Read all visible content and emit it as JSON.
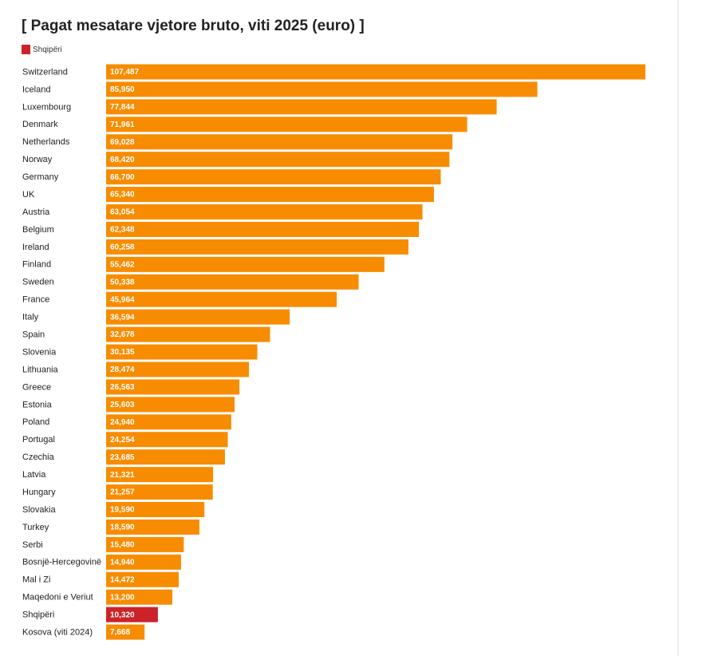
{
  "chart_data": {
    "type": "barh",
    "title": "[ Pagat mesatare vjetore bruto, viti 2025 (euro) ]",
    "color": "#f78c00",
    "highlight": {
      "name": "Shqipëri",
      "color": "#cc2229"
    },
    "categories": [
      "Switzerland",
      "Iceland",
      "Luxembourg",
      "Denmark",
      "Netherlands",
      "Norway",
      "Germany",
      "UK",
      "Austria",
      "Belgium",
      "Ireland",
      "Finland",
      "Sweden",
      "France",
      "Italy",
      "Spain",
      "Slovenia",
      "Lithuania",
      "Greece",
      "Estonia",
      "Poland",
      "Portugal",
      "Czechia",
      "Latvia",
      "Hungary",
      "Slovakia",
      "Turkey",
      "Serbi",
      "Bosnjë-Hercegovinë",
      "Mal i Zi",
      "Maqedoni e Veriut",
      "Shqipëri",
      "Kosova (viti 2024)"
    ],
    "values": [
      107487,
      85950,
      77844,
      71961,
      69028,
      68420,
      66700,
      65340,
      63054,
      62348,
      60258,
      55462,
      50338,
      45964,
      36594,
      32678,
      30135,
      28474,
      26563,
      25603,
      24940,
      24254,
      23685,
      21321,
      21257,
      19590,
      18590,
      15480,
      14940,
      14472,
      13200,
      10320,
      7668
    ],
    "value_labels": [
      "107,487",
      "85,950",
      "77,844",
      "71,961",
      "69,028",
      "68,420",
      "66,700",
      "65,340",
      "63,054",
      "62,348",
      "60,258",
      "55,462",
      "50,338",
      "45,964",
      "36,594",
      "32,678",
      "30,135",
      "28,474",
      "26,563",
      "25,603",
      "24,940",
      "24,254",
      "23,685",
      "21,321",
      "21,257",
      "19,590",
      "18,590",
      "15,480",
      "14,940",
      "14,472",
      "13,200",
      "10,320",
      "7,668"
    ]
  }
}
